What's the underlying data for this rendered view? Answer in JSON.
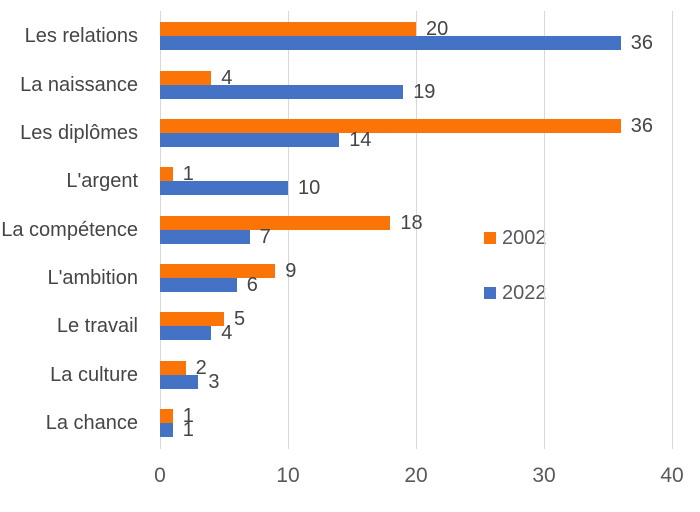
{
  "chart_data": {
    "type": "bar",
    "orientation": "horizontal",
    "title": "",
    "xlabel": "",
    "ylabel": "",
    "categories": [
      "Les relations",
      "La naissance",
      "Les diplômes",
      "L'argent",
      "La compétence",
      "L'ambition",
      "Le travail",
      "La culture",
      "La chance"
    ],
    "series": [
      {
        "name": "2002",
        "color": "#FA7408",
        "values": [
          20,
          4,
          36,
          1,
          18,
          9,
          5,
          2,
          1
        ]
      },
      {
        "name": "2022",
        "color": "#4472C4",
        "values": [
          36,
          19,
          14,
          10,
          7,
          6,
          4,
          3,
          1
        ]
      }
    ],
    "xlim": [
      0,
      40
    ],
    "xticks": [
      0,
      10,
      20,
      30,
      40
    ],
    "grid": true,
    "legend_position": "center-right",
    "value_labels_shown": true
  },
  "styles": {
    "background": "#FFFFFF",
    "gridline_color": "#D9D9D9",
    "axis_line_color": "#D9D9D9",
    "tick_text_color": "#595959",
    "label_text_color": "#454545",
    "legend_text_color": "#595959"
  }
}
